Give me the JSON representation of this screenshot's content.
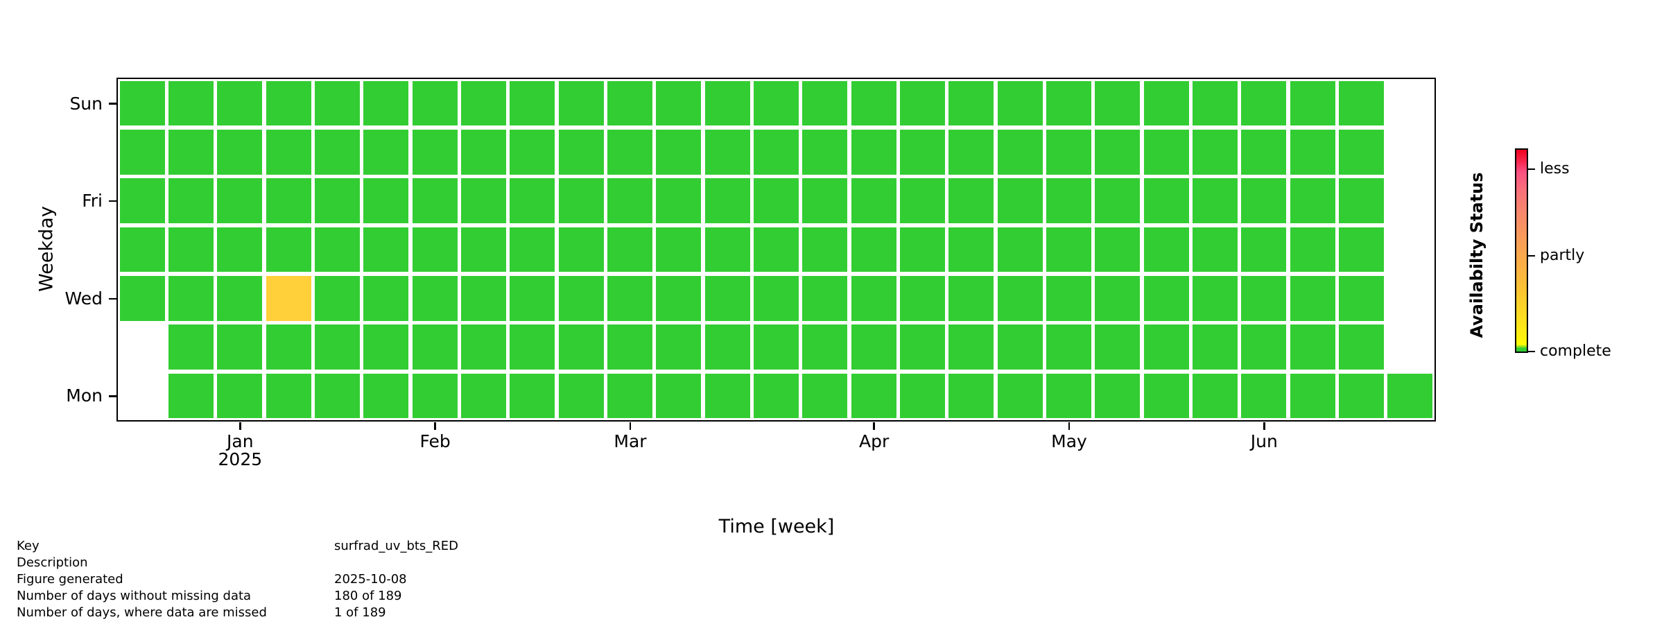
{
  "figure": {
    "background": "#ffffff",
    "axis_color": "#000000"
  },
  "chart_data": {
    "type": "heatmap",
    "subtype": "calendar-data-availability",
    "title": "",
    "xlabel": "Time [week]",
    "ylabel": "Weekday",
    "weekday_rows_top_to_bottom": [
      "Sun",
      "Sat",
      "Fri",
      "Thu",
      "Wed",
      "Tue",
      "Mon"
    ],
    "n_week_columns": 27,
    "x_ticks": [
      {
        "label": "Jan",
        "col_center": 2,
        "sublabel": "2025"
      },
      {
        "label": "Feb",
        "col_center": 6,
        "sublabel": ""
      },
      {
        "label": "Mar",
        "col_center": 10,
        "sublabel": ""
      },
      {
        "label": "Apr",
        "col_center": 15,
        "sublabel": ""
      },
      {
        "label": "May",
        "col_center": 19,
        "sublabel": ""
      },
      {
        "label": "Jun",
        "col_center": 23,
        "sublabel": ""
      }
    ],
    "y_ticks": [
      {
        "label": "Sun",
        "row": 0
      },
      {
        "label": "Fri",
        "row": 2
      },
      {
        "label": "Wed",
        "row": 4
      },
      {
        "label": "Mon",
        "row": 6
      }
    ],
    "cell_rows": [
      {
        "row": 0,
        "weekday": "Sun",
        "from_col": 0,
        "to_col": 25
      },
      {
        "row": 1,
        "weekday": "Sat",
        "from_col": 0,
        "to_col": 25
      },
      {
        "row": 2,
        "weekday": "Fri",
        "from_col": 0,
        "to_col": 25
      },
      {
        "row": 3,
        "weekday": "Thu",
        "from_col": 0,
        "to_col": 25
      },
      {
        "row": 4,
        "weekday": "Wed",
        "from_col": 0,
        "to_col": 25
      },
      {
        "row": 5,
        "weekday": "Tue",
        "from_col": 1,
        "to_col": 25
      },
      {
        "row": 6,
        "weekday": "Mon",
        "from_col": 1,
        "to_col": 26
      }
    ],
    "default_status": "complete",
    "special_cells": [
      {
        "row": 4,
        "col": 3,
        "status": "partly"
      }
    ],
    "status_colors": {
      "complete": "#32CD32",
      "partly": "#FFD03A"
    },
    "colorbar": {
      "label": "Availabilty Status",
      "ticks": [
        {
          "label": "less",
          "pos": 0.096
        },
        {
          "label": "partly",
          "pos": 0.526
        },
        {
          "label": "complete",
          "pos": 1.0
        }
      ],
      "gradient_top_to_bottom": [
        {
          "color": "#F0001E",
          "pos": 0.0
        },
        {
          "color": "#F52147",
          "pos": 0.05
        },
        {
          "color": "#FA5083",
          "pos": 0.11
        },
        {
          "color": "#F9707B",
          "pos": 0.2
        },
        {
          "color": "#F8856D",
          "pos": 0.3
        },
        {
          "color": "#F99E58",
          "pos": 0.45
        },
        {
          "color": "#FBAD49",
          "pos": 0.55
        },
        {
          "color": "#FCC135",
          "pos": 0.68
        },
        {
          "color": "#FDDC22",
          "pos": 0.82
        },
        {
          "color": "#FEF10D",
          "pos": 0.93
        },
        {
          "color": "#FEFD06",
          "pos": 0.965
        },
        {
          "color": "#32CD32",
          "pos": 0.985
        },
        {
          "color": "#32CD32",
          "pos": 1.0
        }
      ]
    }
  },
  "info_table": {
    "rows": [
      {
        "label": "Key",
        "value": "surfrad_uv_bts_RED"
      },
      {
        "label": "Description",
        "value": ""
      },
      {
        "label": "Figure generated",
        "value": "2025-10-08"
      },
      {
        "label": "Number of days without missing data",
        "value": "180 of 189"
      },
      {
        "label": "Number of days, where data are missed",
        "value": "1 of 189"
      }
    ]
  }
}
